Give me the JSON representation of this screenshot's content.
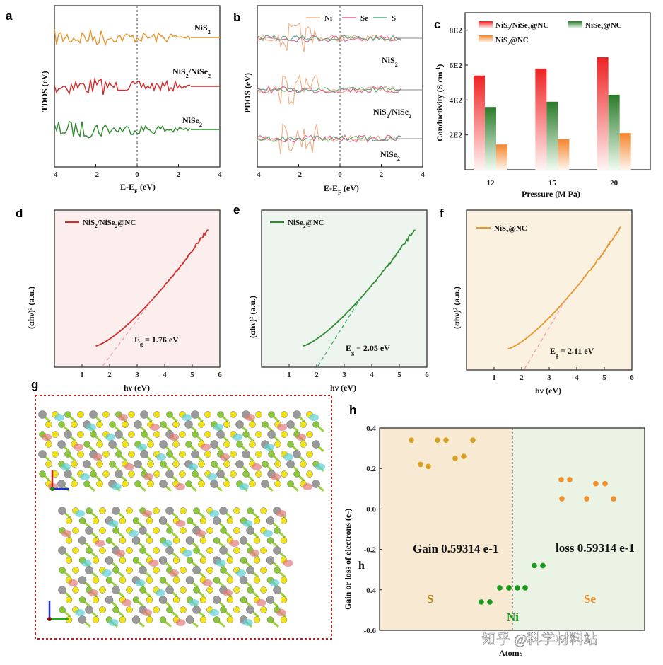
{
  "panels": {
    "a": {
      "letter": "a",
      "ylabel": "TDOS (eV)",
      "xlabel": "E-E",
      "xlabel_sub": "F",
      "xlabel_unit": " (eV)",
      "xticks": [
        "-4",
        "-2",
        "0",
        "2",
        "4"
      ],
      "curve_labels": [
        "NiS",
        "NiS/NiSe",
        "NiSe"
      ],
      "colors": [
        "#e8962b",
        "#d42a2a",
        "#2e8b2e"
      ]
    },
    "b": {
      "letter": "b",
      "ylabel": "PDOS (eV)",
      "xlabel": "E-E",
      "xlabel_sub": "F",
      "xlabel_unit": " (eV)",
      "xticks": [
        "-4",
        "-2",
        "0",
        "2",
        "4"
      ],
      "legend": [
        "Ni",
        "Se",
        "S"
      ],
      "legend_colors": [
        "#f2b48a",
        "#e0609a",
        "#5aa878"
      ],
      "curve_labels": [
        "NiS",
        "NiS/NiSe",
        "NiSe"
      ]
    },
    "c": {
      "letter": "c",
      "ylabel": "Conductivity (S cm",
      "ylabel_sup": "-1",
      "ylabel_end": ")",
      "xlabel": "Pressure (M Pa)",
      "legend": [
        "NiS/NiSe@NC",
        "NiSe@NC",
        "NiS@NC"
      ]
    },
    "d": {
      "letter": "d",
      "legend": "NiS/NiSe@NC",
      "eg": "= 1.76 eV",
      "color": "#d42a2a"
    },
    "e": {
      "letter": "e",
      "legend": "NiSe@NC",
      "eg": "= 2.05 eV",
      "color": "#2e8b2e"
    },
    "f": {
      "letter": "f",
      "legend": "NiS@NC",
      "eg": "= 2.11 eV",
      "color": "#e8962b"
    },
    "tauc": {
      "ylabel": "(αhν)² (a.u.)",
      "xlabel": "hν (eV)",
      "xticks": [
        "1",
        "2",
        "3",
        "4",
        "5",
        "6"
      ],
      "eg_symbol": "E",
      "eg_sub": "g"
    },
    "g": {
      "letter": "g"
    },
    "h": {
      "letter": "h",
      "ylabel": "Gain or loss of electrons (e-)",
      "xlabel": "Atoms",
      "gain_text": "Gain 0.59314 e-1",
      "loss_text": "loss 0.59314 e-1",
      "region_labels": [
        "S",
        "Ni",
        "Se"
      ],
      "stray": "h"
    },
    "watermark": "知乎 @科学材料站"
  },
  "chart_data": [
    {
      "type": "bar",
      "panel": "c",
      "categories": [
        "12",
        "15",
        "20"
      ],
      "yticks": [
        "2E2",
        "4E2",
        "6E2",
        "8E2"
      ],
      "ylim": [
        0,
        900
      ],
      "series": [
        {
          "name": "NiS₂/NiSe₂@NC",
          "values": [
            540,
            580,
            645
          ],
          "color": "#ee2a2a"
        },
        {
          "name": "NiSe₂@NC",
          "values": [
            360,
            390,
            430
          ],
          "color": "#2e8b2e"
        },
        {
          "name": "NiS₂@NC",
          "values": [
            145,
            175,
            210
          ],
          "color": "#f58a3a"
        }
      ]
    },
    {
      "type": "scatter",
      "panel": "h",
      "ylim": [
        -0.6,
        0.4
      ],
      "yticks": [
        "0.4",
        "0.2",
        "0.0",
        "-0.2",
        "-0.4",
        "-0.6"
      ],
      "series": [
        {
          "name": "S",
          "color": "#d8a020",
          "values": [
            0.34,
            0.22,
            0.21,
            0.34,
            0.34,
            0.25,
            0.26,
            0.34
          ]
        },
        {
          "name": "Ni",
          "color": "#1a9a1a",
          "values": [
            -0.46,
            -0.46,
            -0.39,
            -0.39,
            -0.39,
            -0.39,
            -0.28,
            -0.28
          ]
        },
        {
          "name": "Se",
          "color": "#f0902a",
          "values": [
            0.145,
            0.145,
            0.05,
            0.05,
            0.125,
            0.125,
            0.05
          ]
        }
      ]
    }
  ]
}
